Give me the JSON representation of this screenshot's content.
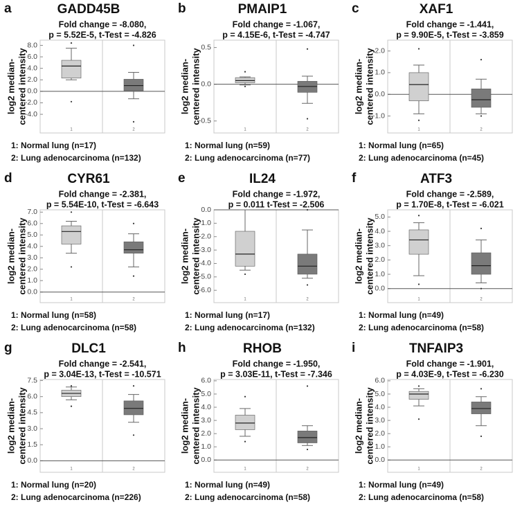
{
  "chart_data": [
    {
      "type": "box",
      "label": "a",
      "title": "GADD45B",
      "stats": [
        "Fold change = -8.080,",
        "p = 5.52E-5, t-Test = -4.826"
      ],
      "ylabel": [
        "log2 median-",
        "centered intensity"
      ],
      "categories": [
        "1",
        "2"
      ],
      "ylim": [
        -5.8,
        8.9
      ],
      "yticks": [
        {
          "value": -4,
          "label": "-4.0"
        },
        {
          "value": -2,
          "label": "-2.0"
        },
        {
          "value": 0,
          "label": "0.0"
        },
        {
          "value": 2,
          "label": "2.0"
        },
        {
          "value": 4,
          "label": "4.0"
        },
        {
          "value": 6,
          "label": "6.0"
        },
        {
          "value": 8,
          "label": "8.0"
        }
      ],
      "series": [
        {
          "name": "1: Normal lung (n=17)",
          "color": "#d0d0d0",
          "whisker_low": 2.0,
          "q1": 2.3,
          "median": 4.4,
          "q3": 5.4,
          "whisker_high": 7.5,
          "outliers": [
            8.4,
            -1.8
          ]
        },
        {
          "name": "2: Lung adenocarcinoma (n=132)",
          "color": "#7a7a7a",
          "whisker_low": -1.3,
          "q1": 0.1,
          "median": 1.0,
          "q3": 2.1,
          "whisker_high": 3.3,
          "outliers": [
            8.0,
            -5.3
          ]
        }
      ]
    },
    {
      "type": "box",
      "label": "b",
      "title": "PMAIP1",
      "stats": [
        "Fold change = -1.067,",
        "p = 4.15E-6, t-Test = -4.747"
      ],
      "ylabel": [
        "log2 median-",
        "centered intensity"
      ],
      "categories": [
        "1",
        "2"
      ],
      "ylim": [
        -0.55,
        0.6
      ],
      "yticks": [
        -0.5,
        {
          "value": 0,
          "label": "0.0"
        },
        0.5
      ],
      "series": [
        {
          "name": "1: Normal lung (n=59)",
          "color": "#d0d0d0",
          "whisker_low": -0.01,
          "q1": 0.02,
          "median": 0.05,
          "q3": 0.09,
          "whisker_high": 0.1,
          "outliers": [
            0.17,
            -0.03
          ]
        },
        {
          "name": "2: Lung adenocarcinoma (n=77)",
          "color": "#7a7a7a",
          "whisker_low": -0.26,
          "q1": -0.11,
          "median": -0.03,
          "q3": 0.04,
          "whisker_high": 0.11,
          "outliers": [
            0.48,
            -0.47
          ]
        }
      ]
    },
    {
      "type": "box",
      "label": "c",
      "title": "XAF1",
      "stats": [
        "Fold change = -1.441,",
        "p = 9.90E-5, t-Test = -3.859"
      ],
      "ylabel": [
        "log2 median-",
        "centered intensity"
      ],
      "categories": [
        "1",
        "2"
      ],
      "ylim": [
        -1.4,
        2.5
      ],
      "yticks": [
        {
          "value": -1,
          "label": "-1.0"
        },
        {
          "value": 0,
          "label": "0.0"
        },
        {
          "value": 1,
          "label": "1.0"
        },
        {
          "value": 2,
          "label": "2.0"
        }
      ],
      "series": [
        {
          "name": "1: Normal lung (n=65)",
          "color": "#d0d0d0",
          "whisker_low": -0.9,
          "q1": -0.3,
          "median": 0.45,
          "q3": 1.0,
          "whisker_high": 1.35,
          "outliers": [
            2.1,
            -1.2
          ]
        },
        {
          "name": "2: Lung adenocarcinoma (n=45)",
          "color": "#7a7a7a",
          "whisker_low": -0.9,
          "q1": -0.6,
          "median": -0.25,
          "q3": 0.25,
          "whisker_high": 0.7,
          "outliers": [
            1.6,
            -1.0
          ]
        }
      ]
    },
    {
      "type": "box",
      "label": "d",
      "title": "CYR61",
      "stats": [
        "Fold change = -2.381,",
        "p = 5.54E-10, t-Test = -6.643"
      ],
      "ylabel": [
        "log2 median-",
        "centered intensity"
      ],
      "categories": [
        "1",
        "2"
      ],
      "ylim": [
        -0.2,
        7.2
      ],
      "yticks": [
        {
          "value": 0,
          "label": "0.0"
        },
        {
          "value": 1,
          "label": "1.0"
        },
        {
          "value": 2,
          "label": "2.0"
        },
        {
          "value": 3,
          "label": "3.0"
        },
        {
          "value": 4,
          "label": "4.0"
        },
        {
          "value": 5,
          "label": "5.0"
        },
        {
          "value": 6,
          "label": "6.0"
        },
        {
          "value": 7,
          "label": "7.0"
        }
      ],
      "series": [
        {
          "name": "1: Normal lung (n=58)",
          "color": "#d0d0d0",
          "whisker_low": 3.4,
          "q1": 4.2,
          "median": 5.3,
          "q3": 5.8,
          "whisker_high": 6.2,
          "outliers": [
            7.0,
            2.2
          ]
        },
        {
          "name": "2: Lung adenocarcinoma (n=58)",
          "color": "#7a7a7a",
          "whisker_low": 2.2,
          "q1": 3.4,
          "median": 3.7,
          "q3": 4.4,
          "whisker_high": 5.1,
          "outliers": [
            6.0,
            1.4
          ]
        }
      ]
    },
    {
      "type": "box",
      "label": "e",
      "title": "IL24",
      "stats": [
        "Fold change = -1.972,",
        "p = 0.011 t-Test = -2.506"
      ],
      "ylabel": [
        "log2 median-",
        "centered intensity"
      ],
      "categories": [
        "1",
        "2"
      ],
      "ylim": [
        -6.3,
        0.0
      ],
      "yticks": [
        {
          "value": -6,
          "label": "-6.0"
        },
        {
          "value": -5,
          "label": "-5.0"
        },
        {
          "value": -4,
          "label": "-4.0"
        },
        {
          "value": -3,
          "label": "-3.0"
        },
        {
          "value": -2,
          "label": "-2.0"
        },
        {
          "value": -1,
          "label": "-1.0"
        },
        {
          "value": 0,
          "label": "0.0"
        }
      ],
      "series": [
        {
          "name": "1: Normal lung (n=17)",
          "color": "#d0d0d0",
          "whisker_low": -4.5,
          "q1": -4.2,
          "median": -3.3,
          "q3": -1.6,
          "whisker_high": 0.0,
          "outliers": [
            -4.8
          ]
        },
        {
          "name": "2: Lung adenocarcinoma (n=132)",
          "color": "#7a7a7a",
          "whisker_low": -5.1,
          "q1": -4.8,
          "median": -4.2,
          "q3": -3.3,
          "whisker_high": -1.5,
          "outliers": [
            0.0,
            -5.6
          ]
        }
      ]
    },
    {
      "type": "box",
      "label": "f",
      "title": "ATF3",
      "stats": [
        "Fold change = -2.589,",
        "p = 1.70E-8, t-Test = -6.021"
      ],
      "ylabel": [
        "log2 median-",
        "centered intensity"
      ],
      "categories": [
        "1",
        "2"
      ],
      "ylim": [
        -0.4,
        5.5
      ],
      "yticks": [
        {
          "value": 0,
          "label": "0.0"
        },
        {
          "value": 1,
          "label": "1.0"
        },
        {
          "value": 2,
          "label": "2.0"
        },
        {
          "value": 3,
          "label": "3.0"
        },
        {
          "value": 4,
          "label": "4.0"
        },
        {
          "value": 5,
          "label": "5.0"
        }
      ],
      "series": [
        {
          "name": "1: Normal lung (n=49)",
          "color": "#d0d0d0",
          "whisker_low": 0.9,
          "q1": 2.4,
          "median": 3.4,
          "q3": 4.1,
          "whisker_high": 4.6,
          "outliers": [
            5.1,
            0.3
          ]
        },
        {
          "name": "2: Lung adenocarcinoma (n=58)",
          "color": "#7a7a7a",
          "whisker_low": 0.4,
          "q1": 1.0,
          "median": 1.6,
          "q3": 2.5,
          "whisker_high": 3.4,
          "outliers": [
            4.2,
            0.0
          ]
        }
      ]
    },
    {
      "type": "box",
      "label": "g",
      "title": "DLC1",
      "stats": [
        "Fold change = -2.541,",
        "p = 3.04E-13, t-Test = -10.571"
      ],
      "ylabel": [
        "log2 median-",
        "centered intensity"
      ],
      "categories": [
        "1",
        "2"
      ],
      "ylim": [
        -0.3,
        7.6
      ],
      "yticks": [
        {
          "value": 0,
          "label": "0.0"
        },
        1.5,
        {
          "value": 3,
          "label": "3.0"
        },
        4.5,
        {
          "value": 6,
          "label": "6.0"
        },
        7.5
      ],
      "series": [
        {
          "name": "1: Normal lung (n=20)",
          "color": "#d0d0d0",
          "whisker_low": 5.7,
          "q1": 6.0,
          "median": 6.3,
          "q3": 6.6,
          "whisker_high": 6.9,
          "outliers": [
            7.0,
            5.1
          ]
        },
        {
          "name": "2: Lung adenocarcinoma (n=226)",
          "color": "#7a7a7a",
          "whisker_low": 3.6,
          "q1": 4.3,
          "median": 4.9,
          "q3": 5.6,
          "whisker_high": 6.2,
          "outliers": [
            7.0,
            2.4
          ]
        }
      ]
    },
    {
      "type": "box",
      "label": "h",
      "title": "RHOB",
      "stats": [
        "Fold change = -1.950,",
        "p = 3.03E-11, t-Test = -7.346"
      ],
      "ylabel": [
        "log2 median-",
        "centered intensity"
      ],
      "categories": [
        "1",
        "2"
      ],
      "ylim": [
        -0.3,
        6.1
      ],
      "yticks": [
        {
          "value": 0,
          "label": "0.0"
        },
        {
          "value": 1,
          "label": "1.0"
        },
        {
          "value": 2,
          "label": "2.0"
        },
        {
          "value": 3,
          "label": "3.0"
        },
        {
          "value": 4,
          "label": "4.0"
        },
        {
          "value": 5,
          "label": "5.0"
        },
        {
          "value": 6,
          "label": "6.0"
        }
      ],
      "series": [
        {
          "name": "1: Normal lung (n=49)",
          "color": "#d0d0d0",
          "whisker_low": 1.8,
          "q1": 2.3,
          "median": 2.8,
          "q3": 3.4,
          "whisker_high": 3.9,
          "outliers": [
            4.8,
            1.4
          ]
        },
        {
          "name": "2: Lung adenocarcinoma (n=58)",
          "color": "#7a7a7a",
          "whisker_low": 1.1,
          "q1": 1.3,
          "median": 1.7,
          "q3": 2.2,
          "whisker_high": 2.6,
          "outliers": [
            5.6,
            0.8
          ]
        }
      ]
    },
    {
      "type": "box",
      "label": "i",
      "title": "TNFAIP3",
      "stats": [
        "Fold change = -1.901,",
        "p = 4.03E-9, t-Test = -6.230"
      ],
      "ylabel": [
        "log2 median-",
        "centered intensity"
      ],
      "categories": [
        "1",
        "2"
      ],
      "ylim": [
        -0.3,
        6.1
      ],
      "yticks": [
        {
          "value": 0,
          "label": "0.0"
        },
        {
          "value": 1,
          "label": "1.0"
        },
        {
          "value": 2,
          "label": "2.0"
        },
        {
          "value": 3,
          "label": "3.0"
        },
        {
          "value": 4,
          "label": "4.0"
        },
        {
          "value": 5,
          "label": "5.0"
        },
        {
          "value": 6,
          "label": "6.0"
        }
      ],
      "series": [
        {
          "name": "1: Normal lung (n=49)",
          "color": "#d0d0d0",
          "whisker_low": 4.1,
          "q1": 4.6,
          "median": 5.0,
          "q3": 5.2,
          "whisker_high": 5.4,
          "outliers": [
            5.6,
            3.1
          ]
        },
        {
          "name": "2: Lung adenocarcinoma (n=58)",
          "color": "#7a7a7a",
          "whisker_low": 2.6,
          "q1": 3.5,
          "median": 3.9,
          "q3": 4.4,
          "whisker_high": 4.8,
          "outliers": [
            5.4,
            1.8
          ]
        }
      ]
    }
  ]
}
